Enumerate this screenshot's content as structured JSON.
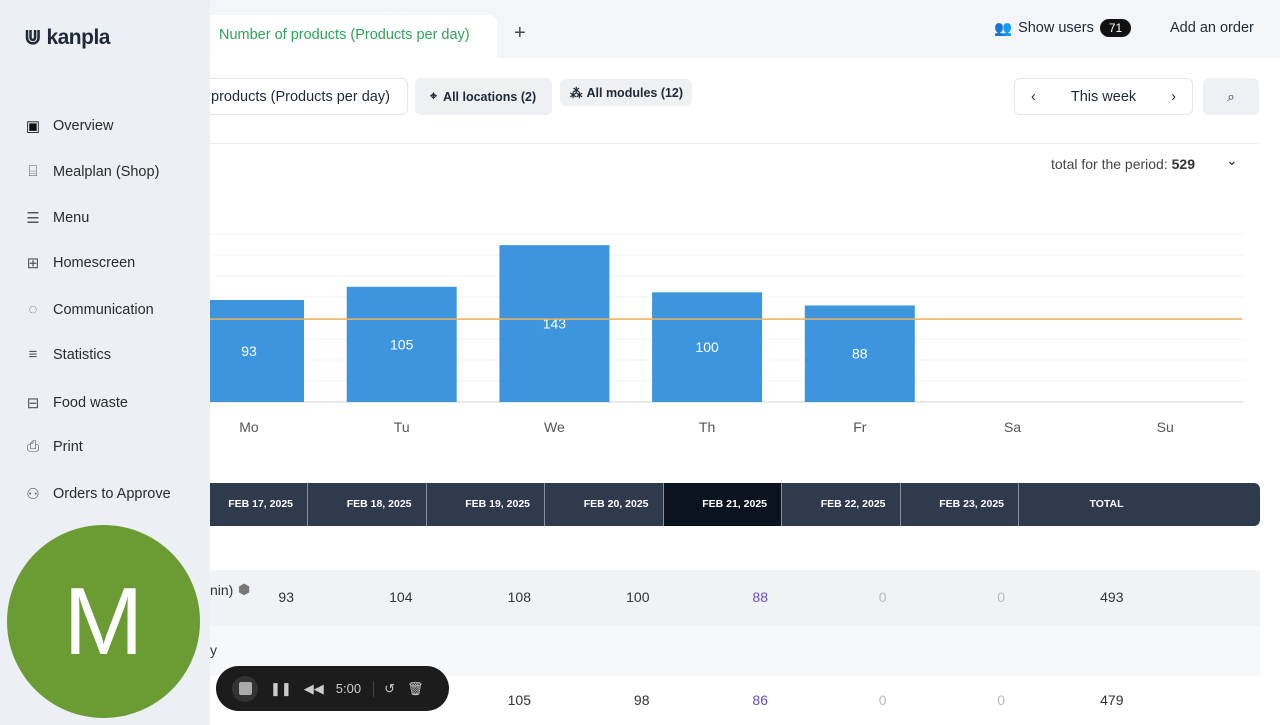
{
  "header": {
    "tab_label": "Number of products (Products per day)",
    "add_tab": "+",
    "show_users": "Show users",
    "users_count": "71",
    "add_order": "Add an order"
  },
  "filters": {
    "report": "products (Products per day)",
    "locations": "All locations (2)",
    "modules": "All modules (12)",
    "period": "This week"
  },
  "summary": {
    "label": "total for the period:",
    "value": "529"
  },
  "chart_data": {
    "type": "bar",
    "categories": [
      "Mo",
      "Tu",
      "We",
      "Th",
      "Fr",
      "Sa",
      "Su"
    ],
    "values": [
      93,
      105,
      143,
      100,
      88,
      0,
      0
    ],
    "average": 75.6,
    "ylim": [
      0,
      160
    ],
    "bar_color": "#3d95de",
    "avg_color": "#f0b35a"
  },
  "table": {
    "headers": [
      "FEB 17, 2025",
      "FEB 18, 2025",
      "FEB 19, 2025",
      "FEB 20, 2025",
      "FEB 21, 2025",
      "FEB 22, 2025",
      "FEB 23, 2025",
      "TOTAL"
    ],
    "rows": [
      {
        "label": "nin)",
        "values": [
          "93",
          "104",
          "108",
          "100",
          "88",
          "0",
          "0",
          "493"
        ]
      },
      {
        "label": "y",
        "values": []
      },
      {
        "label": "",
        "values": [
          "",
          "100",
          "105",
          "98",
          "86",
          "0",
          "0",
          "479"
        ]
      }
    ]
  },
  "sidebar": {
    "brand": "kanpla",
    "items": [
      {
        "label": "Overview",
        "icon": "calendar-check"
      },
      {
        "label": "Mealplan (Shop)",
        "icon": "shop"
      },
      {
        "label": "Menu",
        "icon": "list"
      },
      {
        "label": "Homescreen",
        "icon": "grid"
      },
      {
        "label": "Communication",
        "icon": "chat"
      },
      {
        "label": "Statistics",
        "icon": "chart"
      },
      {
        "label": "Food waste",
        "icon": "bin"
      },
      {
        "label": "Print",
        "icon": "printer"
      },
      {
        "label": "Orders to Approve",
        "icon": "user-check"
      }
    ]
  },
  "avatar": {
    "initial": "M"
  },
  "recorder": {
    "time": "5:00"
  }
}
